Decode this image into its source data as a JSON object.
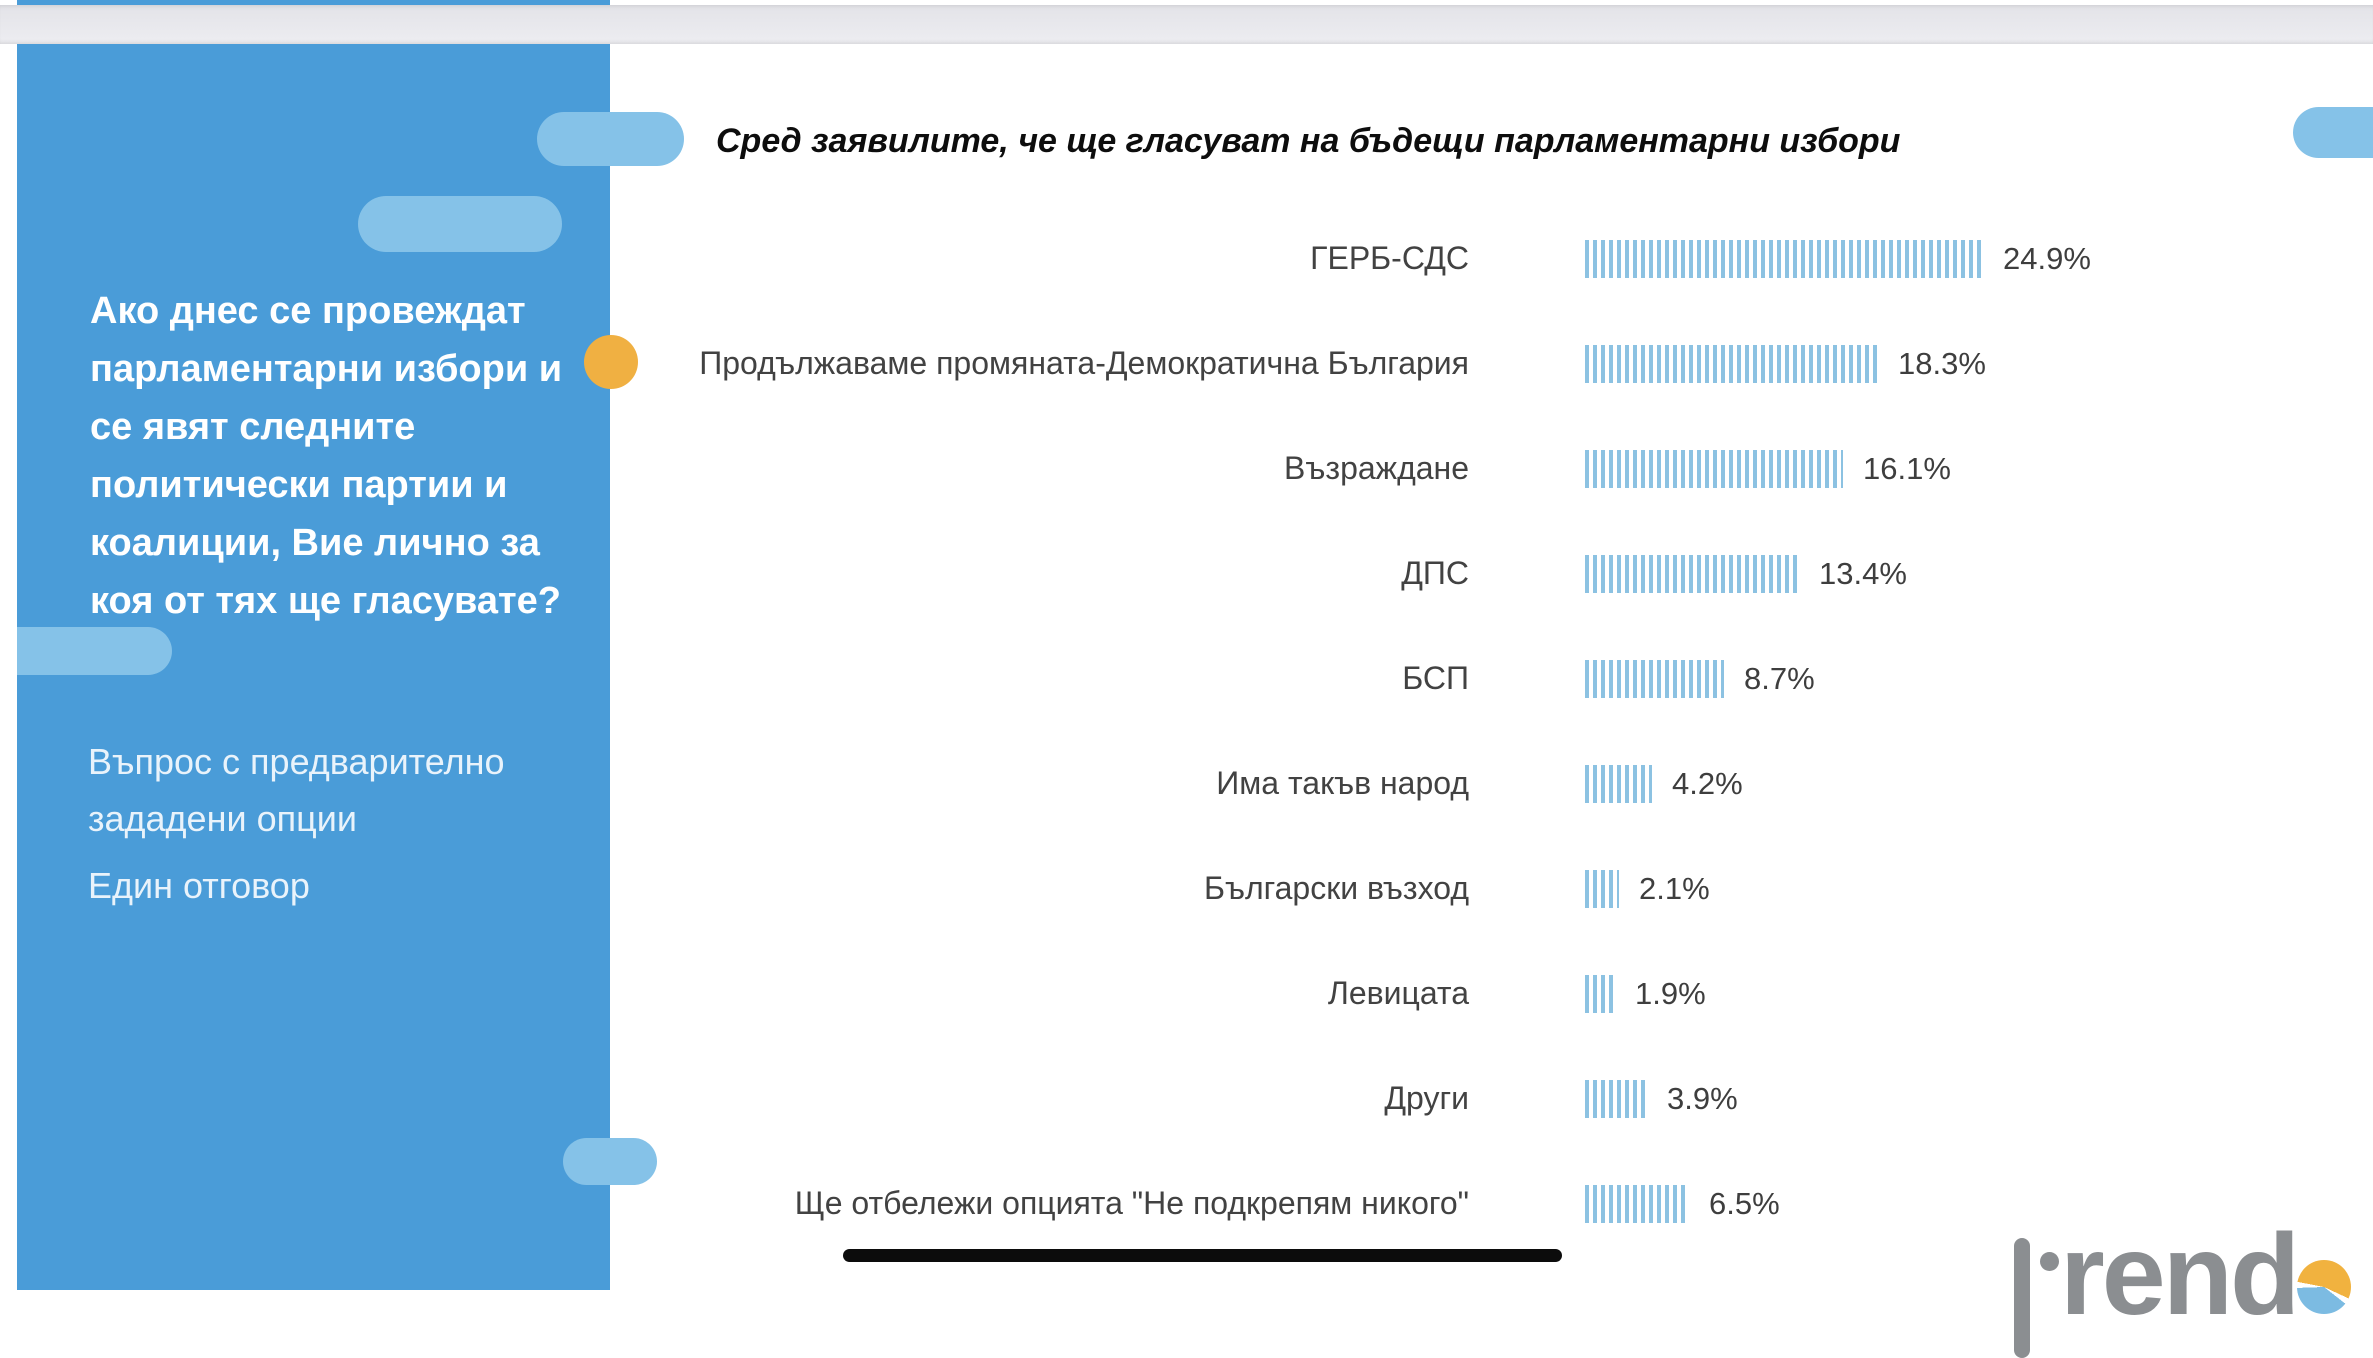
{
  "page": {
    "slide_background": "#ffffff",
    "gap_color": "#e9e9ee"
  },
  "sidebar": {
    "background_color": "#4a9cd8",
    "decor_pill_color": "#85c2e8",
    "accent_dot_color": "#f0b042",
    "question_lines": [
      "Ако днес се провеждат",
      "парламентарни избори и",
      "се явят следните",
      "политически партии и",
      "коалиции, Вие лично за",
      "коя от тях ще гласувате?"
    ],
    "note_lines": [
      "Въпрос с предварително",
      "зададени опции"
    ],
    "answer_type": "Един отговор"
  },
  "chart_data": {
    "type": "bar",
    "orientation": "horizontal",
    "title": "Сред заявилите, че ще гласуват на бъдещи парламентарни избори",
    "unit": "%",
    "categories": [
      "ГЕРБ-СДС",
      "Продължаваме промяната-Демократична България",
      "Възраждане",
      "ДПС",
      "БСП",
      "Има такъв народ",
      "Български възход",
      "Левицата",
      "Други",
      "Ще отбележи опцията  \"Не подкрепям никого\""
    ],
    "values": [
      24.9,
      18.3,
      16.1,
      13.4,
      8.7,
      4.2,
      2.1,
      1.9,
      3.9,
      6.5
    ],
    "value_labels": [
      "24.9%",
      "18.3%",
      "16.1%",
      "13.4%",
      "8.7%",
      "4.2%",
      "2.1%",
      "1.9%",
      "3.9%",
      "6.5%"
    ],
    "bar_color": "#8cc2e2",
    "bar_pattern": "vertical-stripes",
    "grid": false,
    "legend": "none",
    "xlim": [
      0,
      25
    ],
    "pixels_per_percent": 16
  },
  "logo": {
    "visible_text": "rend",
    "brand": "trend"
  }
}
